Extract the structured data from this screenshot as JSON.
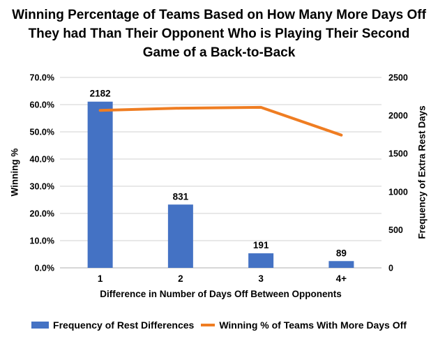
{
  "title": "Winning Percentage of Teams Based on How Many More Days Off They had Than Their Opponent Who is Playing Their Second Game of a Back-to-Back",
  "colors": {
    "bar": "#4472C4",
    "line": "#EF7D22",
    "gridline": "#D9D9D9",
    "axis_line": "#BFBFBF",
    "text": "#000000",
    "background": "#FFFFFF"
  },
  "chart_data": {
    "type": "bar+line combo",
    "title": "Winning Percentage of Teams Based on How Many More Days Off They had Than Their Opponent Who is Playing Their Second Game of a Back-to-Back",
    "categories": [
      "1",
      "2",
      "3",
      "4+"
    ],
    "series": [
      {
        "name": "Frequency of Rest Differences",
        "type": "bar",
        "axis": "right",
        "values": [
          2182,
          831,
          191,
          89
        ],
        "data_labels": [
          "2182",
          "831",
          "191",
          "89"
        ]
      },
      {
        "name": "Winning % of Teams With More Days Off",
        "type": "line",
        "axis": "left",
        "values": [
          57.9,
          58.7,
          59.0,
          48.8
        ]
      }
    ],
    "xlabel": "Difference in Number of Days Off Between Opponents",
    "ylabel_left": "Winning %",
    "ylabel_right": "Frequency of Extra Rest Days",
    "y_left": {
      "min": 0,
      "max": 70,
      "step": 10,
      "tick_labels": [
        "0.0%",
        "10.0%",
        "20.0%",
        "30.0%",
        "40.0%",
        "50.0%",
        "60.0%",
        "70.0%"
      ]
    },
    "y_right": {
      "min": 0,
      "max": 2500,
      "step": 500,
      "tick_labels": [
        "0",
        "500",
        "1000",
        "1500",
        "2000",
        "2500"
      ]
    },
    "grid": true,
    "legend_position": "bottom"
  }
}
